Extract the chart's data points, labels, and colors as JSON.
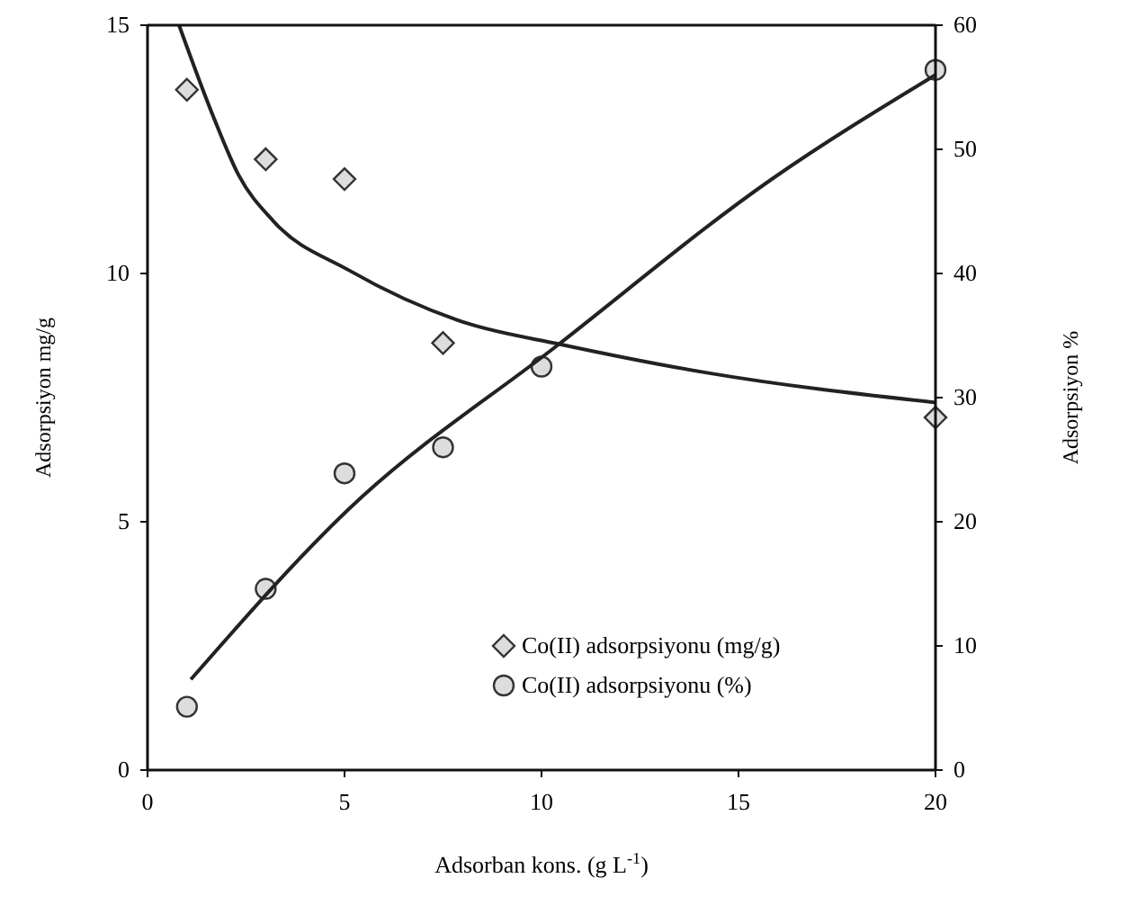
{
  "chart_data": {
    "type": "scatter",
    "xlabel": "Adsorban kons. (g L$^{-1}$)",
    "ylabel": "Adsorpsiyon mg/g",
    "y2label": "Adsorpsiyon %",
    "xlim": [
      0,
      20
    ],
    "xticks": [
      0,
      5,
      10,
      15,
      20
    ],
    "ylim": [
      0,
      15
    ],
    "yticks": [
      0,
      5,
      10,
      15
    ],
    "y2lim": [
      0,
      60
    ],
    "y2ticks": [
      0,
      10,
      20,
      30,
      40,
      50,
      60
    ],
    "grid": false,
    "legend": "bottom right",
    "series": [
      {
        "name": "Co(II) adsorpsiyonu (mg/g)",
        "color": "#333333",
        "marker": "diamond",
        "x": [
          1,
          3,
          5,
          7.5,
          20
        ],
        "values": [
          13.7,
          12.3,
          11.9,
          8.6,
          7.1
        ]
      },
      {
        "name": "Co(II) adsorpsiyonu (%)",
        "color": "#333333",
        "marker": "circle",
        "axis": "y2",
        "x": [
          1,
          3,
          5,
          7.5,
          10,
          20
        ],
        "values": [
          5.1,
          14.6,
          23.9,
          26,
          32.5,
          56.4
        ]
      },
      {
        "type": "line",
        "color": "#222222",
        "x": [
          0.8,
          1.7,
          2.3,
          3.2,
          5.1,
          8.1,
          10.5,
          14.2,
          20
        ],
        "values": [
          15,
          13.1,
          12,
          11.05,
          10.07,
          9,
          8.57,
          8,
          7.4
        ]
      },
      {
        "type": "line",
        "color": "#222222",
        "axis": "y2",
        "x": [
          1.1,
          5.1,
          10.4,
          15.8,
          20
        ],
        "values": [
          7.3,
          21,
          34.2,
          47.5,
          56
        ]
      }
    ]
  }
}
